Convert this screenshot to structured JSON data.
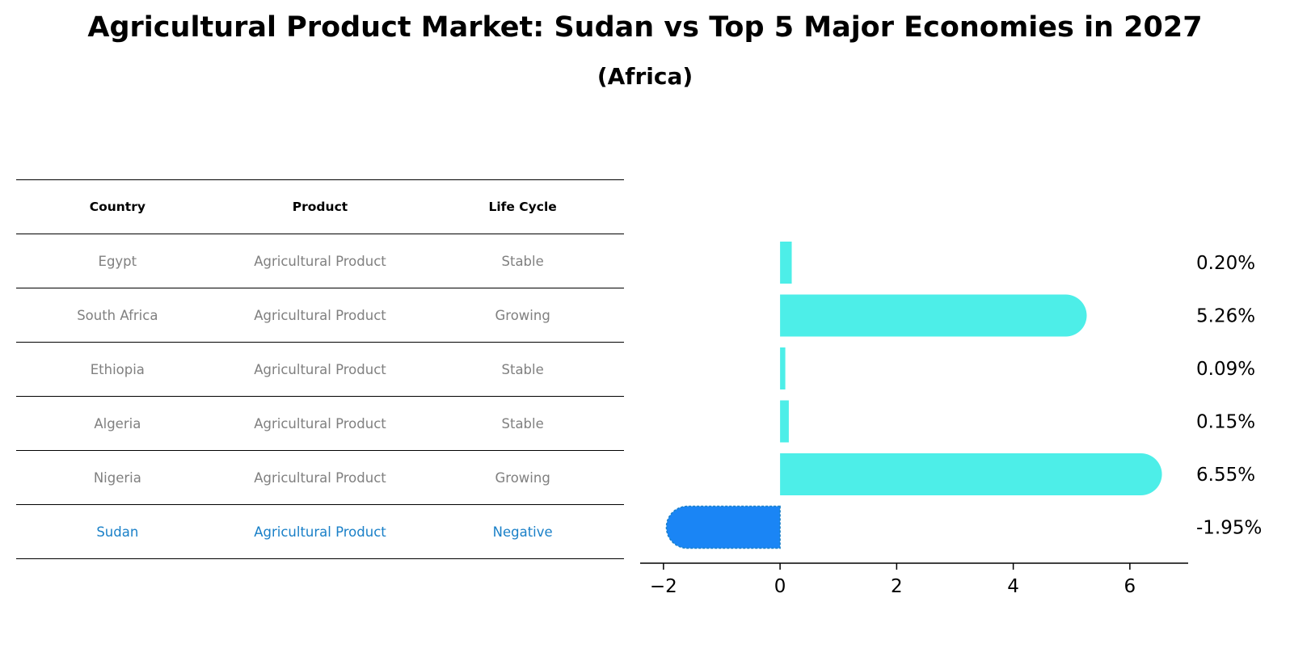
{
  "title": "Agricultural Product Market: Sudan vs Top 5 Major Economies in 2027",
  "subtitle": "(Africa)",
  "table": {
    "headers": [
      "Country",
      "Product",
      "Life Cycle"
    ],
    "rows": [
      {
        "country": "Egypt",
        "product": "Agricultural Product",
        "life_cycle": "Stable"
      },
      {
        "country": "South Africa",
        "product": "Agricultural Product",
        "life_cycle": "Growing"
      },
      {
        "country": "Ethiopia",
        "product": "Agricultural Product",
        "life_cycle": "Stable"
      },
      {
        "country": "Algeria",
        "product": "Agricultural Product",
        "life_cycle": "Stable"
      },
      {
        "country": "Nigeria",
        "product": "Agricultural Product",
        "life_cycle": "Growing"
      },
      {
        "country": "Sudan",
        "product": "Agricultural Product",
        "life_cycle": "Negative"
      }
    ]
  },
  "chart_data": {
    "type": "bar",
    "orientation": "horizontal",
    "categories": [
      "Egypt",
      "South Africa",
      "Ethiopia",
      "Algeria",
      "Nigeria",
      "Sudan"
    ],
    "values": [
      0.2,
      5.26,
      0.09,
      0.15,
      6.55,
      -1.95
    ],
    "value_labels": [
      "0.20%",
      "5.26%",
      "0.09%",
      "0.15%",
      "6.55%",
      "-1.95%"
    ],
    "xlim": [
      -2.4,
      7.0
    ],
    "xticks": [
      -2,
      0,
      2,
      4,
      6
    ],
    "xtick_labels": [
      "−2",
      "0",
      "2",
      "4",
      "6"
    ],
    "colors": {
      "positive": "#4deee8",
      "negative": "#1a85f5"
    },
    "highlight": "Sudan"
  }
}
